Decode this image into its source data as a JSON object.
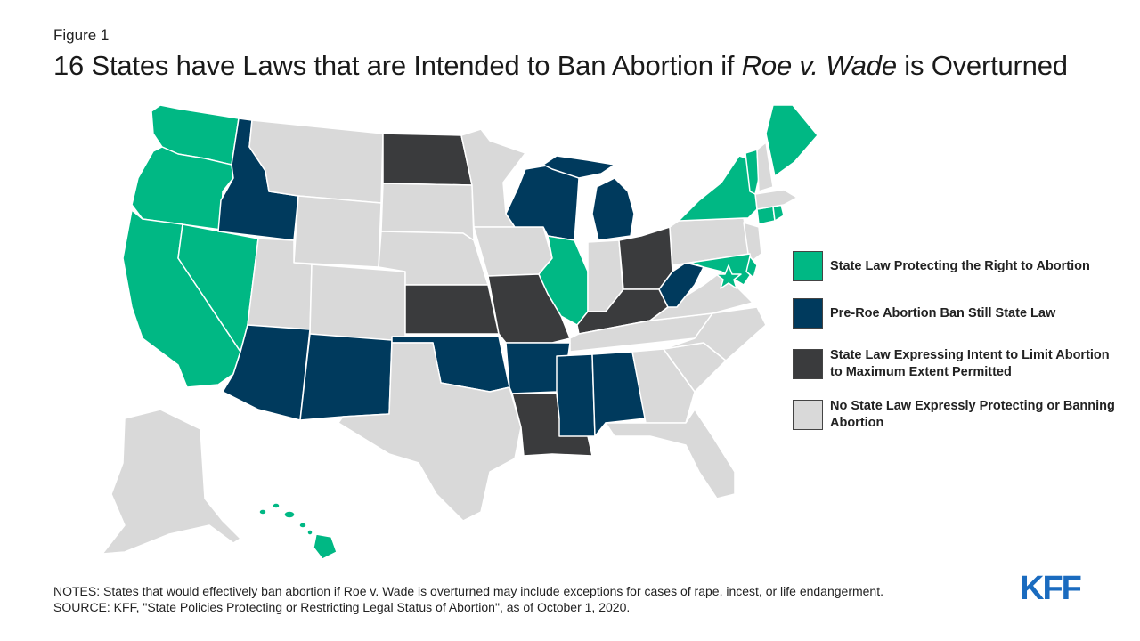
{
  "header": {
    "figure_label": "Figure 1",
    "title_before": "16 States have Laws that are Intended to Ban Abortion if ",
    "title_italic": "Roe v. Wade",
    "title_after": " is Overturned"
  },
  "colors": {
    "protect": "#00b884",
    "preroe": "#003a5d",
    "intent": "#3a3b3d",
    "none": "#d9d9d9",
    "border": "#ffffff"
  },
  "legend": [
    {
      "key": "protect",
      "label": "State Law Protecting the Right to Abortion"
    },
    {
      "key": "preroe",
      "label": "Pre-Roe Abortion Ban Still State Law"
    },
    {
      "key": "intent",
      "label": "State Law Expressing Intent to Limit Abortion to Maximum Extent Permitted"
    },
    {
      "key": "none",
      "label": "No State Law Expressly Protecting or Banning Abortion"
    }
  ],
  "states": {
    "WA": "protect",
    "OR": "protect",
    "CA": "protect",
    "NV": "protect",
    "IL": "protect",
    "NY": "protect",
    "VT": "protect",
    "ME": "protect",
    "CT": "protect",
    "RI": "protect",
    "MD": "protect",
    "DE": "protect",
    "HI": "protect",
    "DC": "protect",
    "ID": "preroe",
    "AZ": "preroe",
    "NM": "preroe",
    "OK": "preroe",
    "AR": "preroe",
    "MS": "preroe",
    "AL": "preroe",
    "WI": "preroe",
    "MI": "preroe",
    "WV": "preroe",
    "ND": "intent",
    "KS": "intent",
    "MO": "intent",
    "KY": "intent",
    "OH": "intent",
    "LA": "intent",
    "MT": "none",
    "WY": "none",
    "UT": "none",
    "CO": "none",
    "SD": "none",
    "NE": "none",
    "MN": "none",
    "IA": "none",
    "TX": "none",
    "IN": "none",
    "TN": "none",
    "GA": "none",
    "FL": "none",
    "SC": "none",
    "NC": "none",
    "VA": "none",
    "PA": "none",
    "NJ": "none",
    "MA": "none",
    "NH": "none",
    "AK": "none"
  },
  "footer": {
    "notes": "NOTES: States that would effectively ban abortion if Roe v. Wade is overturned may include exceptions for cases of rape, incest, or life endangerment.",
    "source": "SOURCE: KFF, \"State Policies Protecting or Restricting Legal Status of Abortion\", as of October 1, 2020.",
    "logo": "KFF"
  }
}
